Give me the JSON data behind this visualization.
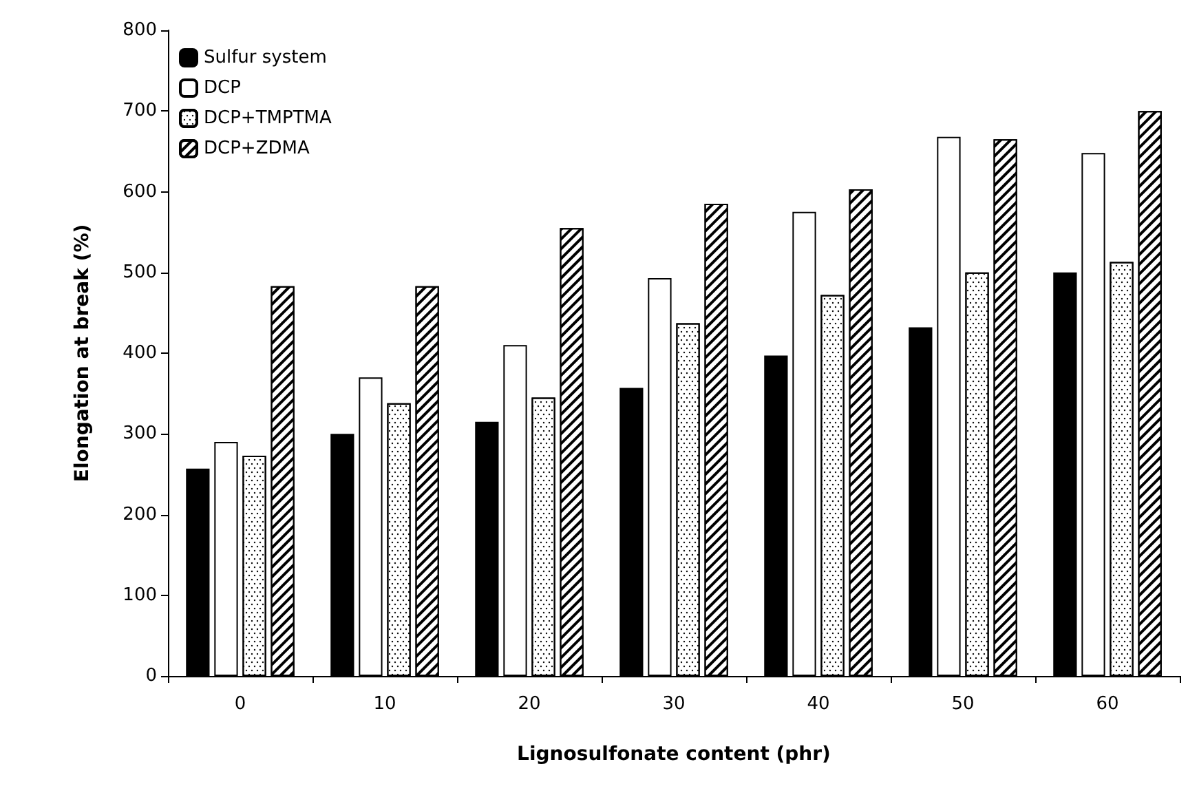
{
  "chart_data": {
    "type": "bar",
    "xlabel": "Lignosulfonate content (phr)",
    "ylabel": "Elongation at break (%)",
    "categories": [
      "0",
      "10",
      "20",
      "30",
      "40",
      "50",
      "60"
    ],
    "series": [
      {
        "name": "Sulfur system",
        "color": "#000000",
        "values": [
          257,
          300,
          315,
          357,
          397,
          432,
          500
        ]
      },
      {
        "name": "DCP",
        "color": "#ffffff",
        "values": [
          290,
          370,
          410,
          493,
          575,
          668,
          648
        ]
      },
      {
        "name": "DCP+TMPTMA",
        "color": "#ffffff",
        "values": [
          273,
          338,
          345,
          437,
          472,
          500,
          513
        ]
      },
      {
        "name": "DCP+ZDMA",
        "color": "#ffffff",
        "values": [
          483,
          483,
          555,
          585,
          603,
          665,
          700
        ]
      }
    ],
    "ylim": [
      0,
      800
    ],
    "yticks": [
      0,
      100,
      200,
      300,
      400,
      500,
      600,
      700,
      800
    ],
    "grid": false,
    "legend": "top left"
  }
}
